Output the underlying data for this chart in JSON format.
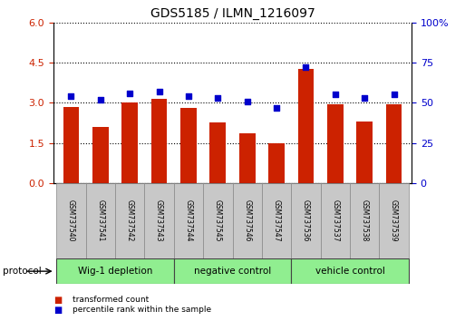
{
  "title": "GDS5185 / ILMN_1216097",
  "samples": [
    "GSM737540",
    "GSM737541",
    "GSM737542",
    "GSM737543",
    "GSM737544",
    "GSM737545",
    "GSM737546",
    "GSM737547",
    "GSM737536",
    "GSM737537",
    "GSM737538",
    "GSM737539"
  ],
  "transformed_count": [
    2.85,
    2.1,
    3.0,
    3.15,
    2.82,
    2.25,
    1.85,
    1.5,
    4.25,
    2.95,
    2.3,
    2.95
  ],
  "percentile_rank": [
    54,
    52,
    56,
    57,
    54,
    53,
    51,
    47,
    72,
    55,
    53,
    55
  ],
  "groups": [
    {
      "label": "Wig-1 depletion",
      "start": 0,
      "end": 4
    },
    {
      "label": "negative control",
      "start": 4,
      "end": 8
    },
    {
      "label": "vehicle control",
      "start": 8,
      "end": 12
    }
  ],
  "bar_color": "#cc2200",
  "dot_color": "#0000cc",
  "group_bg_color": "#90ee90",
  "sample_bg_color": "#c8c8c8",
  "left_yticks": [
    0,
    1.5,
    3.0,
    4.5,
    6.0
  ],
  "right_yticks": [
    0,
    25,
    50,
    75,
    100
  ],
  "left_ylim": [
    0,
    6.0
  ],
  "right_ylim": [
    0,
    100
  ],
  "legend_items": [
    {
      "label": "transformed count",
      "color": "#cc2200"
    },
    {
      "label": "percentile rank within the sample",
      "color": "#0000cc"
    }
  ]
}
